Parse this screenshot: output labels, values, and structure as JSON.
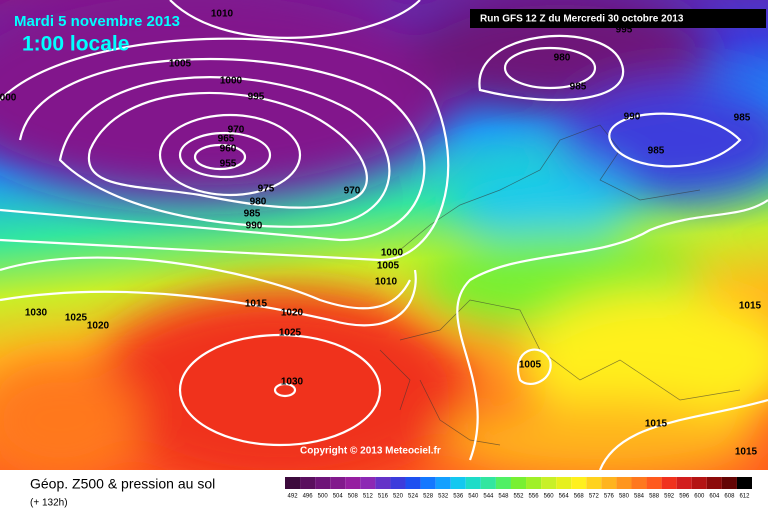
{
  "header": {
    "date": "Mardi 5 novembre 2013",
    "time": "1:00 locale",
    "run": "Run GFS 12 Z du Mercredi 30 octobre 2013"
  },
  "map": {
    "pressure_labels": [
      "1010",
      "1005",
      "1000",
      "995",
      "970",
      "965",
      "960",
      "955",
      "975",
      "980",
      "985",
      "990",
      "970",
      "1000",
      "1005",
      "1010",
      "1015",
      "1020",
      "1025",
      "1030",
      "1030",
      "1025",
      "1020",
      "000",
      "995",
      "980",
      "985",
      "990",
      "985",
      "985",
      "1005",
      "1015",
      "1015",
      "1015"
    ],
    "copyright": "Copyright © 2013 Meteociel.fr"
  },
  "legend": {
    "title": "Géop. Z500 & pression au sol",
    "lead_time": "(+ 132h)",
    "scale": {
      "values": [
        492,
        496,
        500,
        504,
        508,
        512,
        516,
        520,
        524,
        528,
        532,
        536,
        540,
        544,
        548,
        552,
        556,
        560,
        564,
        568,
        572,
        576,
        580,
        584,
        588,
        592,
        596,
        600,
        604,
        608,
        612
      ],
      "colors": [
        "#3c0a3c",
        "#5a0f5e",
        "#6e1478",
        "#82198c",
        "#961ea0",
        "#8c28b4",
        "#6432c8",
        "#3c3cdc",
        "#1e50f0",
        "#1478ff",
        "#14a0ff",
        "#14c8f0",
        "#1edcc8",
        "#32e6a0",
        "#50f064",
        "#78f032",
        "#a0f028",
        "#c8f028",
        "#e6f01e",
        "#fff01e",
        "#ffd21e",
        "#ffb41e",
        "#ff961e",
        "#ff781e",
        "#ff5a1e",
        "#f0321e",
        "#d21e1e",
        "#b41414",
        "#8c0a0a",
        "#640505",
        "#000000"
      ]
    }
  }
}
